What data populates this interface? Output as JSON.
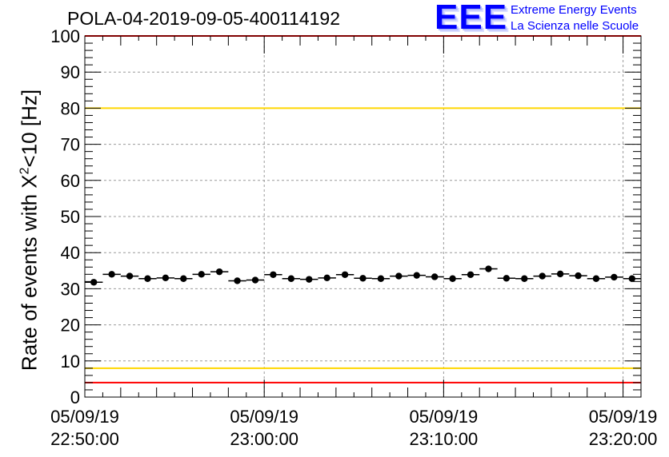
{
  "title": "POLA-04-2019-09-05-400114192",
  "logo": {
    "mark": "EEE",
    "line1": "Extreme Energy Events",
    "line2": "La Scienza nelle Scuole",
    "color": "#0000ff"
  },
  "chart_data": {
    "type": "scatter",
    "title": "POLA-04-2019-09-05-400114192",
    "ylabel_prefix": "Rate of events with X",
    "ylabel_sup": "2",
    "ylabel_suffix": "<10 [Hz]",
    "xlabel": "",
    "ylim": [
      0,
      100
    ],
    "yticks": [
      0,
      10,
      20,
      30,
      40,
      50,
      60,
      70,
      80,
      90,
      100
    ],
    "xlim": [
      "2019-09-05T22:50:00",
      "2019-09-05T23:21:00"
    ],
    "xticks": [
      {
        "date": "05/09/19",
        "time": "22:50:00"
      },
      {
        "date": "05/09/19",
        "time": "23:00:00"
      },
      {
        "date": "05/09/19",
        "time": "23:10:00"
      },
      {
        "date": "05/09/19",
        "time": "23:20:00"
      }
    ],
    "grid": true,
    "bin_minutes": 1,
    "series": [
      {
        "x": [
          "22:50:30",
          "22:51:30",
          "22:52:30",
          "22:53:30",
          "22:54:30",
          "22:55:30",
          "22:56:30",
          "22:57:30",
          "22:58:30",
          "22:59:30",
          "23:00:30",
          "23:01:30",
          "23:02:30",
          "23:03:30",
          "23:04:30",
          "23:05:30",
          "23:06:30",
          "23:07:30",
          "23:08:30",
          "23:09:30",
          "23:10:30",
          "23:11:30",
          "23:12:30",
          "23:13:30",
          "23:14:30",
          "23:15:30",
          "23:16:30",
          "23:17:30",
          "23:18:30",
          "23:19:30",
          "23:20:30"
        ],
        "y": [
          31.8,
          34.0,
          33.5,
          32.8,
          33.0,
          32.8,
          34.0,
          34.7,
          32.2,
          32.4,
          33.9,
          32.8,
          32.6,
          33.0,
          33.9,
          32.9,
          32.8,
          33.5,
          33.7,
          33.3,
          32.8,
          33.9,
          35.5,
          32.9,
          32.8,
          33.5,
          34.1,
          33.6,
          32.8,
          33.2,
          32.8
        ],
        "color": "#000000"
      }
    ],
    "reference_lines": [
      {
        "y": 80,
        "color": "#ffd700"
      },
      {
        "y": 8,
        "color": "#ffd700"
      },
      {
        "y": 100,
        "color": "#ff0000"
      },
      {
        "y": 4,
        "color": "#ff0000"
      }
    ]
  }
}
